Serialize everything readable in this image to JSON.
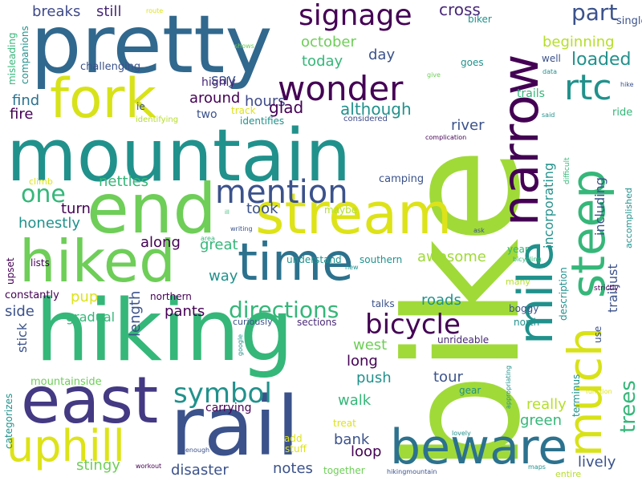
{
  "palette": {
    "purple": "#440154",
    "indigo": "#3b528b",
    "blue": "#31688e",
    "teal": "#21918c",
    "sea": "#1f9e89",
    "green": "#35b779",
    "lime": "#6ece58",
    "yellowgreen": "#b5de2b",
    "yellow": "#dde318"
  },
  "words": [
    {
      "text": "bike",
      "color": "#a0da39"
    },
    {
      "text": "mountain",
      "color": "#21918c"
    },
    {
      "text": "hiking",
      "color": "#35b779"
    },
    {
      "text": "pretty",
      "color": "#31688e"
    },
    {
      "text": "rail",
      "color": "#3b528b"
    },
    {
      "text": "end",
      "color": "#6ece58"
    },
    {
      "text": "east",
      "color": "#443983"
    },
    {
      "text": "hiked",
      "color": "#6ece58"
    },
    {
      "text": "fork",
      "color": "#d8e219"
    },
    {
      "text": "stream",
      "color": "#dde318"
    },
    {
      "text": "time",
      "color": "#2c728e"
    },
    {
      "text": "uphill",
      "color": "#dde318"
    },
    {
      "text": "beware",
      "color": "#2c728e"
    },
    {
      "text": "narrow",
      "color": "#440154"
    },
    {
      "text": "mile",
      "color": "#21918c"
    },
    {
      "text": "much",
      "color": "#d8e219"
    },
    {
      "text": "steep",
      "color": "#35b779"
    },
    {
      "text": "wonder",
      "color": "#440154"
    },
    {
      "text": "signage",
      "color": "#440154"
    },
    {
      "text": "mention",
      "color": "#3b528b"
    },
    {
      "text": "rtc",
      "color": "#21918c"
    },
    {
      "text": "bicycle",
      "color": "#440154"
    },
    {
      "text": "symbol",
      "color": "#21918c"
    },
    {
      "text": "directions",
      "color": "#35b779"
    },
    {
      "text": "one",
      "color": "#35b779"
    },
    {
      "text": "trees",
      "color": "#35b779"
    },
    {
      "text": "part",
      "color": "#3b528b"
    },
    {
      "text": "loaded",
      "color": "#21918c"
    },
    {
      "text": "cross",
      "color": "#482878"
    },
    {
      "text": "still",
      "color": "#482878"
    },
    {
      "text": "breaks",
      "color": "#3e4a89"
    },
    {
      "text": "hours",
      "color": "#3e4a89"
    },
    {
      "text": "october",
      "color": "#6ece58"
    },
    {
      "text": "today",
      "color": "#35b779"
    },
    {
      "text": "day",
      "color": "#3b528b"
    },
    {
      "text": "beginning",
      "color": "#b5de2b"
    },
    {
      "text": "although",
      "color": "#21918c"
    },
    {
      "text": "glad",
      "color": "#440154"
    },
    {
      "text": "around",
      "color": "#440154"
    },
    {
      "text": "say",
      "color": "#3b528b"
    },
    {
      "text": "highly",
      "color": "#482878"
    },
    {
      "text": "two",
      "color": "#3b528b"
    },
    {
      "text": "find",
      "color": "#2c728e"
    },
    {
      "text": "fire",
      "color": "#440154"
    },
    {
      "text": "river",
      "color": "#3b528b"
    },
    {
      "text": "incorporating",
      "color": "#21918c"
    },
    {
      "text": "including",
      "color": "#3b528b"
    },
    {
      "text": "trailjust",
      "color": "#3b528b"
    },
    {
      "text": "took",
      "color": "#3b528b"
    },
    {
      "text": "nettles",
      "color": "#35b779"
    },
    {
      "text": "turn",
      "color": "#440154"
    },
    {
      "text": "honestly",
      "color": "#21918c"
    },
    {
      "text": "along",
      "color": "#440154"
    },
    {
      "text": "great",
      "color": "#35b779"
    },
    {
      "text": "way",
      "color": "#21918c"
    },
    {
      "text": "awesome",
      "color": "#a0da39"
    },
    {
      "text": "pants",
      "color": "#440154"
    },
    {
      "text": "pup",
      "color": "#dde318"
    },
    {
      "text": "side",
      "color": "#3b528b"
    },
    {
      "text": "length",
      "color": "#3b528b"
    },
    {
      "text": "roads",
      "color": "#21918c"
    },
    {
      "text": "west",
      "color": "#6ece58"
    },
    {
      "text": "long",
      "color": "#440154"
    },
    {
      "text": "push",
      "color": "#21918c"
    },
    {
      "text": "tour",
      "color": "#3b528b"
    },
    {
      "text": "walk",
      "color": "#35b779"
    },
    {
      "text": "really",
      "color": "#b5de2b"
    },
    {
      "text": "green",
      "color": "#35b779"
    },
    {
      "text": "lively",
      "color": "#3b528b"
    },
    {
      "text": "stick",
      "color": "#3b528b"
    },
    {
      "text": "gradual",
      "color": "#35b779"
    },
    {
      "text": "carrying",
      "color": "#440154"
    },
    {
      "text": "bank",
      "color": "#3b528b"
    },
    {
      "text": "loop",
      "color": "#440154"
    },
    {
      "text": "notes",
      "color": "#3b528b"
    },
    {
      "text": "stingy",
      "color": "#6ece58"
    },
    {
      "text": "disaster",
      "color": "#3b528b"
    },
    {
      "text": "camping",
      "color": "#3b528b"
    },
    {
      "text": "maybe",
      "color": "#b5de2b"
    },
    {
      "text": "southern",
      "color": "#21918c"
    },
    {
      "text": "understand",
      "color": "#21918c"
    },
    {
      "text": "northern",
      "color": "#440154"
    },
    {
      "text": "curiously",
      "color": "#3b528b"
    },
    {
      "text": "sections",
      "color": "#482878"
    },
    {
      "text": "talks",
      "color": "#3b528b"
    },
    {
      "text": "boggy",
      "color": "#3b528b"
    },
    {
      "text": "unrideable",
      "color": "#482878"
    },
    {
      "text": "north",
      "color": "#21918c"
    },
    {
      "text": "gear",
      "color": "#21918c"
    },
    {
      "text": "description",
      "color": "#21918c"
    },
    {
      "text": "use",
      "color": "#3b528b"
    },
    {
      "text": "terminus",
      "color": "#21918c"
    },
    {
      "text": "mountainside",
      "color": "#6ece58"
    },
    {
      "text": "categorizes",
      "color": "#21918c"
    },
    {
      "text": "constantly",
      "color": "#440154"
    },
    {
      "text": "upset",
      "color": "#440154"
    },
    {
      "text": "lists",
      "color": "#440154"
    },
    {
      "text": "challenging",
      "color": "#3b528b"
    },
    {
      "text": "companions",
      "color": "#21918c"
    },
    {
      "text": "misleading",
      "color": "#35b779"
    },
    {
      "text": "identifies",
      "color": "#21918c"
    },
    {
      "text": "considered",
      "color": "#3e4a89"
    },
    {
      "text": "complication",
      "color": "#440154"
    },
    {
      "text": "track",
      "color": "#dde318"
    },
    {
      "text": "identifying",
      "color": "#b5de2b"
    },
    {
      "text": "ie",
      "color": "#3b528b"
    },
    {
      "text": "trails",
      "color": "#35b779"
    },
    {
      "text": "well",
      "color": "#3b528b"
    },
    {
      "text": "goes",
      "color": "#21918c"
    },
    {
      "text": "single",
      "color": "#3b528b"
    },
    {
      "text": "biker",
      "color": "#21918c"
    },
    {
      "text": "data",
      "color": "#21918c"
    },
    {
      "text": "give",
      "color": "#6ece58"
    },
    {
      "text": "shows",
      "color": "#6ece58"
    },
    {
      "text": "route",
      "color": "#dde318"
    },
    {
      "text": "said",
      "color": "#21918c"
    },
    {
      "text": "ride",
      "color": "#35b779"
    },
    {
      "text": "hike",
      "color": "#3b528b"
    },
    {
      "text": "difficult",
      "color": "#35b779"
    },
    {
      "text": "accomplished",
      "color": "#21918c"
    },
    {
      "text": "climb",
      "color": "#dde318"
    },
    {
      "text": "ill",
      "color": "#35b779"
    },
    {
      "text": "writing",
      "color": "#3b528b"
    },
    {
      "text": "area",
      "color": "#35b779"
    },
    {
      "text": "ask",
      "color": "#3b528b"
    },
    {
      "text": "new",
      "color": "#21918c"
    },
    {
      "text": "year",
      "color": "#35b779"
    },
    {
      "text": "bicycling",
      "color": "#35b779"
    },
    {
      "text": "strictly",
      "color": "#440154"
    },
    {
      "text": "many",
      "color": "#b5de2b"
    },
    {
      "text": "google",
      "color": "#21918c"
    },
    {
      "text": "appropriating",
      "color": "#21918c"
    },
    {
      "text": "function",
      "color": "#dde318"
    },
    {
      "text": "treat",
      "color": "#dde318"
    },
    {
      "text": "add",
      "color": "#dde318"
    },
    {
      "text": "stuff",
      "color": "#dde318"
    },
    {
      "text": "enough",
      "color": "#3b528b"
    },
    {
      "text": "workout",
      "color": "#440154"
    },
    {
      "text": "together",
      "color": "#6ece58"
    },
    {
      "text": "lovely",
      "color": "#21918c"
    },
    {
      "text": "hikingmountain",
      "color": "#3b528b"
    },
    {
      "text": "maps",
      "color": "#21918c"
    },
    {
      "text": "entire",
      "color": "#b5de2b"
    }
  ]
}
